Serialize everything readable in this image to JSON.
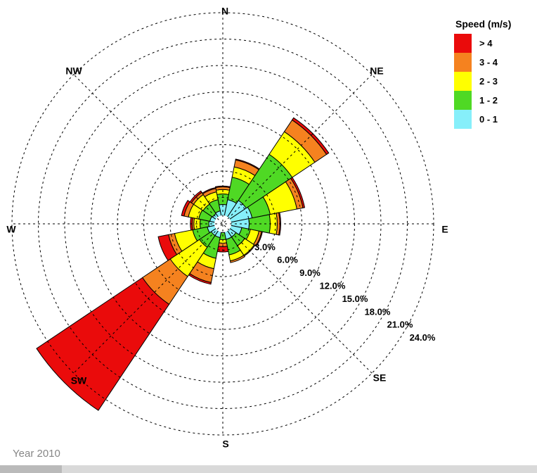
{
  "window": {
    "footer": "Year 2010"
  },
  "chart_data": {
    "type": "bar",
    "variant": "wind-rose-polar-stacked",
    "legend_title": "Speed (m/s)",
    "legend_position": "top-right",
    "grid": "dashed",
    "compass_labels": [
      "N",
      "NE",
      "E",
      "SE",
      "S",
      "SW",
      "W",
      "NW"
    ],
    "directions": [
      "N",
      "NNE",
      "NE",
      "ENE",
      "E",
      "ESE",
      "SE",
      "SSE",
      "S",
      "SSW",
      "SW",
      "WSW",
      "W",
      "WNW",
      "NW",
      "NNW"
    ],
    "radial_axis": {
      "unit": "%",
      "step": 3,
      "max": 24,
      "ring_count": 8
    },
    "ring_labels": [
      "3.0%",
      "6.0%",
      "9.0%",
      "12.0%",
      "15.0%",
      "18.0%",
      "21.0%",
      "24.0%"
    ],
    "series": [
      {
        "name": "> 4",
        "color": "#ea0b0b",
        "values": [
          0.1,
          0.1,
          0.3,
          0.2,
          0.1,
          0.1,
          0.0,
          0.0,
          0.6,
          0.2,
          14.5,
          1.2,
          0.2,
          0.3,
          0.2,
          0.1
        ]
      },
      {
        "name": "3 - 4",
        "color": "#f5821f",
        "values": [
          0.3,
          0.8,
          1.6,
          0.7,
          0.3,
          0.3,
          0.1,
          0.2,
          0.4,
          1.6,
          3.8,
          0.7,
          0.2,
          0.5,
          0.3,
          0.4
        ]
      },
      {
        "name": "2 - 3",
        "color": "#ffff00",
        "values": [
          0.5,
          1.2,
          3.1,
          3.1,
          0.8,
          1.0,
          1.3,
          0.7,
          0.4,
          1.2,
          4.0,
          2.1,
          0.7,
          1.2,
          1.3,
          0.9
        ]
      },
      {
        "name": "1 - 2",
        "color": "#4fd924",
        "values": [
          1.2,
          2.6,
          6.3,
          2.1,
          2.4,
          1.0,
          1.2,
          1.8,
          0.8,
          2.4,
          1.6,
          1.7,
          1.0,
          1.3,
          1.3,
          1.3
        ]
      },
      {
        "name": "0 - 1",
        "color": "#86effa",
        "values": [
          2.2,
          2.8,
          3.2,
          3.4,
          3.0,
          2.2,
          1.8,
          1.8,
          1.0,
          1.6,
          1.6,
          1.8,
          1.6,
          1.5,
          1.4,
          1.5
        ]
      }
    ]
  }
}
